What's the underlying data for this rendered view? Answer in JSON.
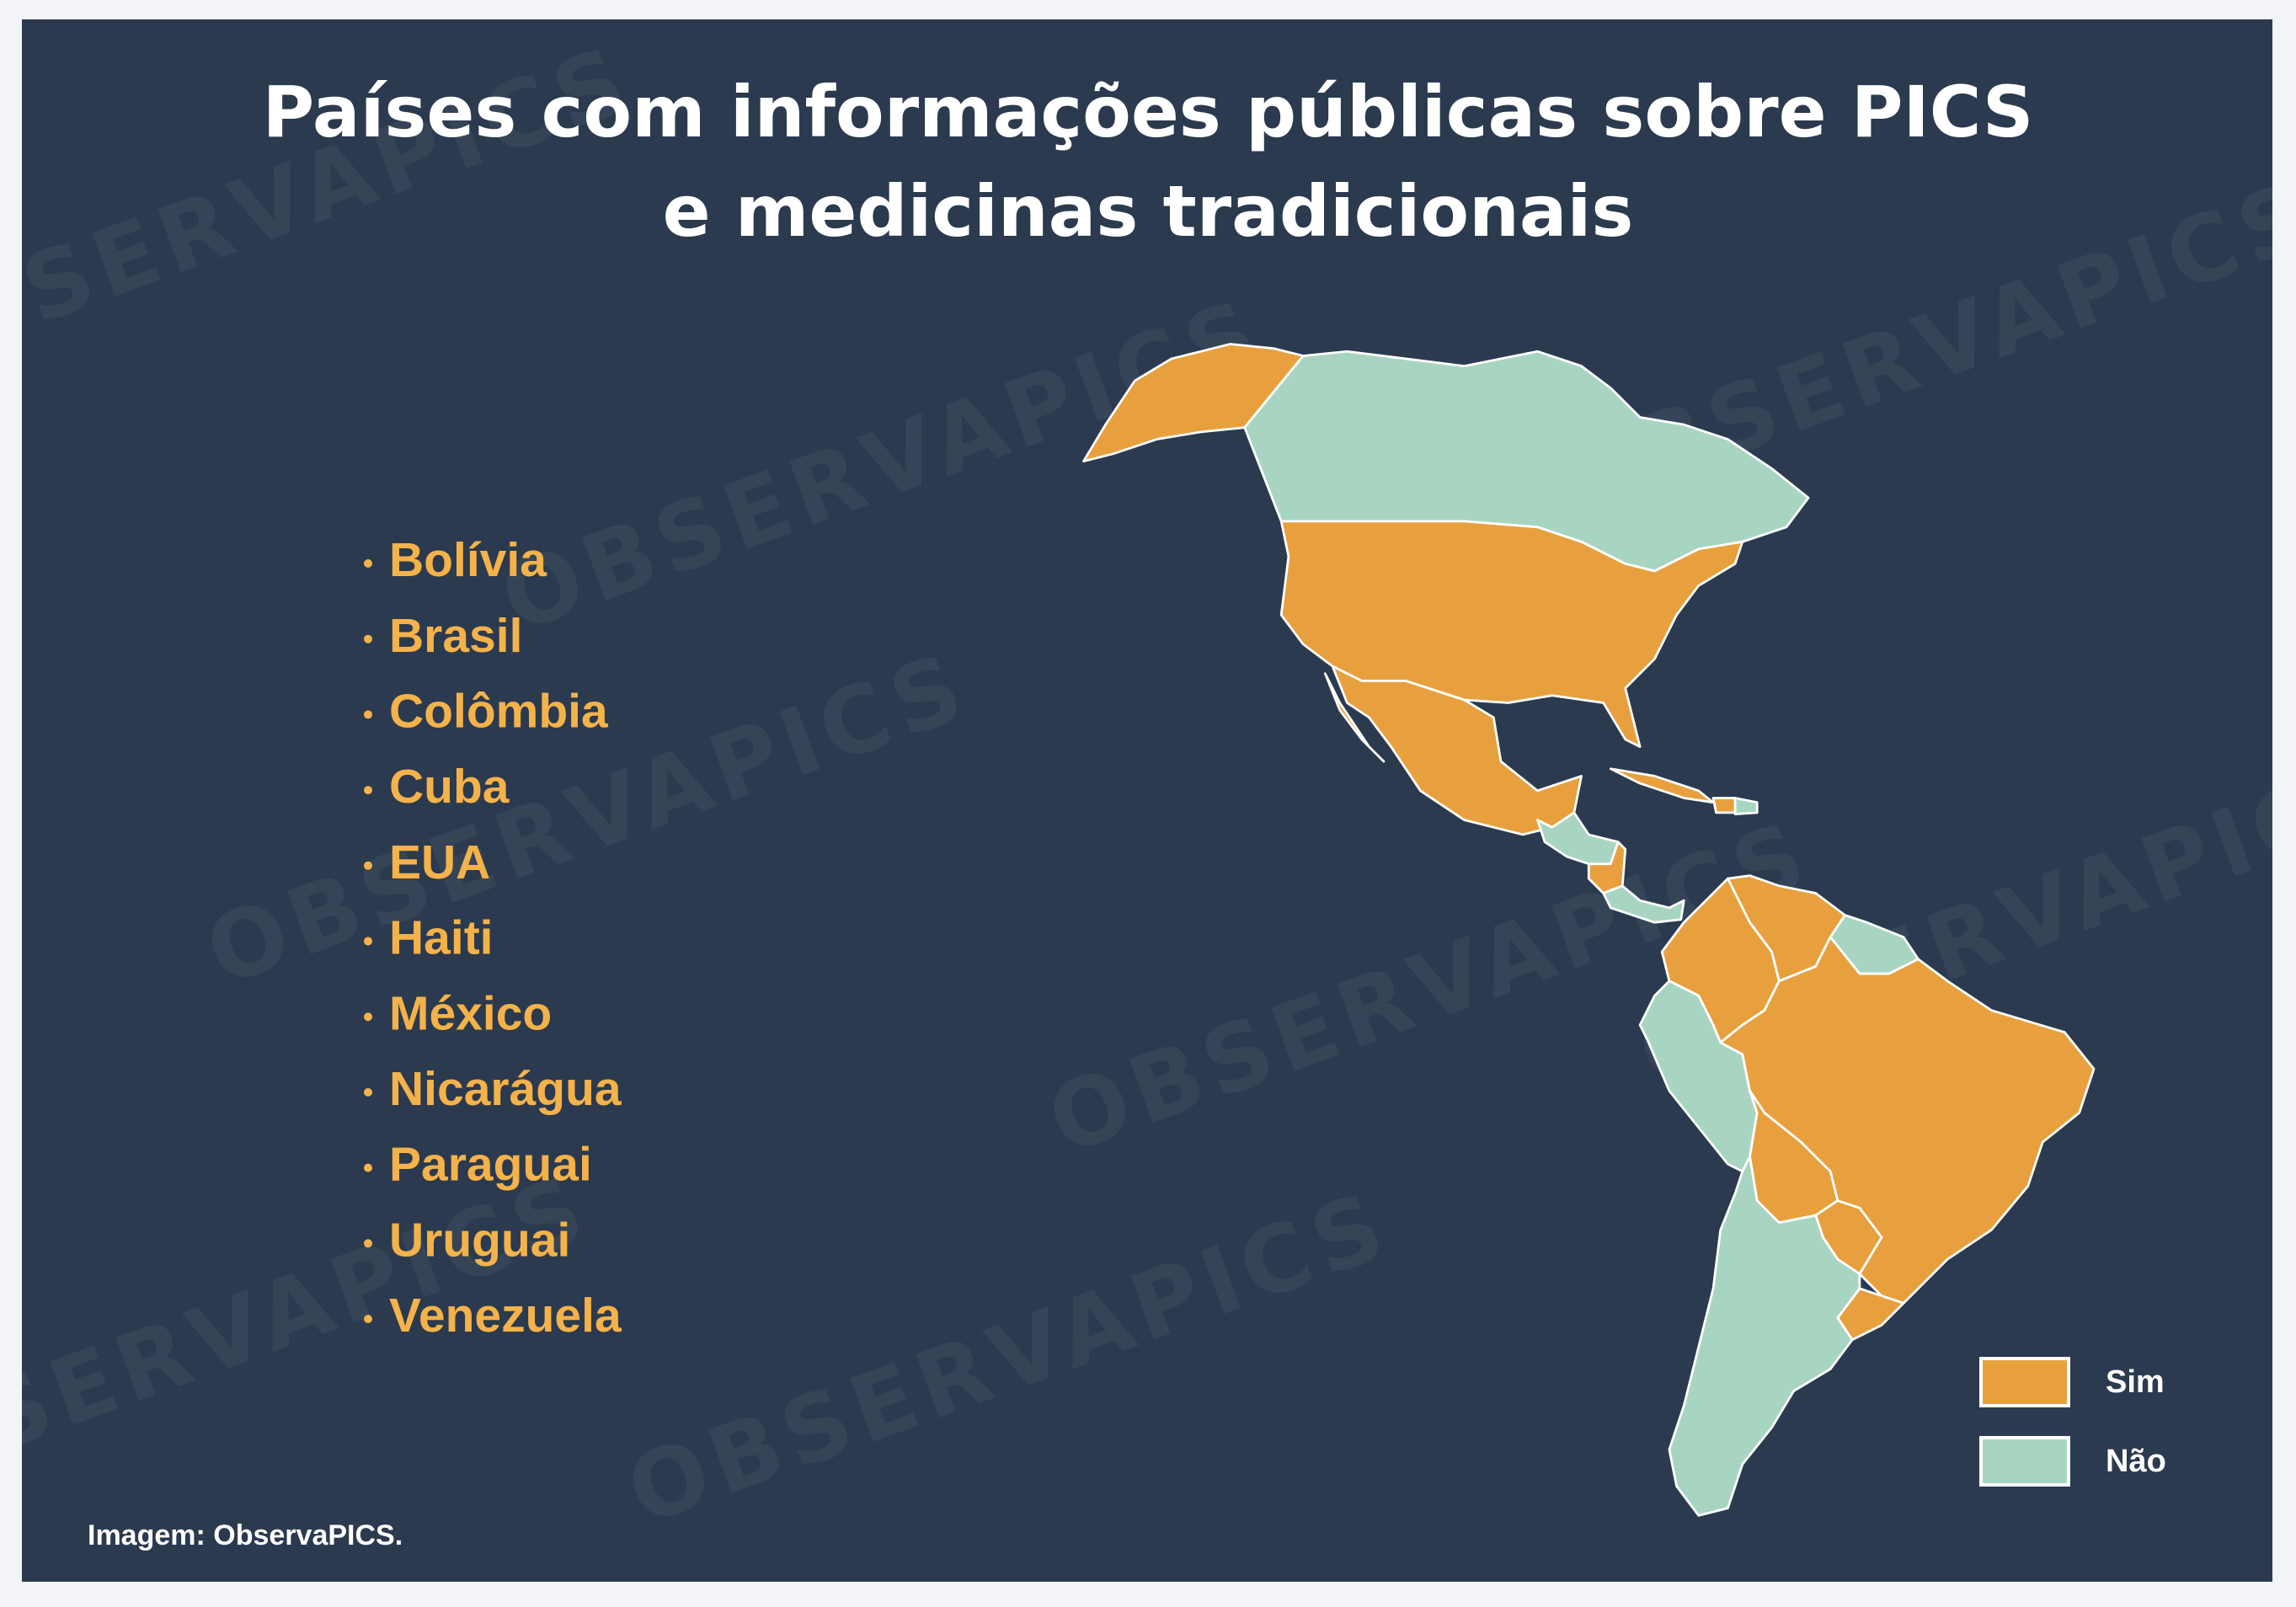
{
  "title": {
    "lines": [
      "Países com informações públicas sobre PICS",
      "e medicinas tradicionais"
    ]
  },
  "countries": [
    "Bolívia",
    "Brasil",
    "Colômbia",
    "Cuba",
    "EUA",
    "Haiti",
    "México",
    "Nicarágua",
    "Paraguai",
    "Uruguai",
    "Venezuela"
  ],
  "legend": [
    {
      "label": "Sim",
      "color": "#e8a03e"
    },
    {
      "label": "Não",
      "color": "#a8d5c2"
    }
  ],
  "credit": "Imagem: ObservaPICS.",
  "watermark": "OBSERVAPICS"
}
